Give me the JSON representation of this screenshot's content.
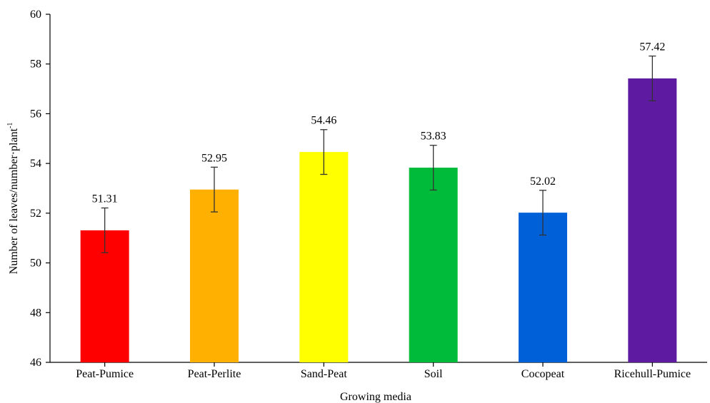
{
  "chart_data": {
    "type": "bar",
    "xlabel": "Growing media",
    "ylabel_main": "Number of leaves/number·plant",
    "ylabel_sup": "-1",
    "ylim": [
      46,
      60
    ],
    "yticks": [
      46,
      48,
      50,
      52,
      54,
      56,
      58,
      60
    ],
    "categories": [
      "Peat-Pumice",
      "Peat-Perlite",
      "Sand-Peat",
      "Soil",
      "Cocopeat",
      "Ricehull-Pumice"
    ],
    "values": [
      51.31,
      52.95,
      54.46,
      53.83,
      52.02,
      57.42
    ],
    "value_labels": [
      "51.31",
      "52.95",
      "54.46",
      "53.83",
      "52.02",
      "57.42"
    ],
    "error": [
      0.9,
      0.9,
      0.9,
      0.9,
      0.9,
      0.9
    ],
    "colors": [
      "#ff0000",
      "#ffb000",
      "#ffff00",
      "#00bb3a",
      "#0060d8",
      "#5e1aa0"
    ],
    "grid": false,
    "legend": "none"
  }
}
